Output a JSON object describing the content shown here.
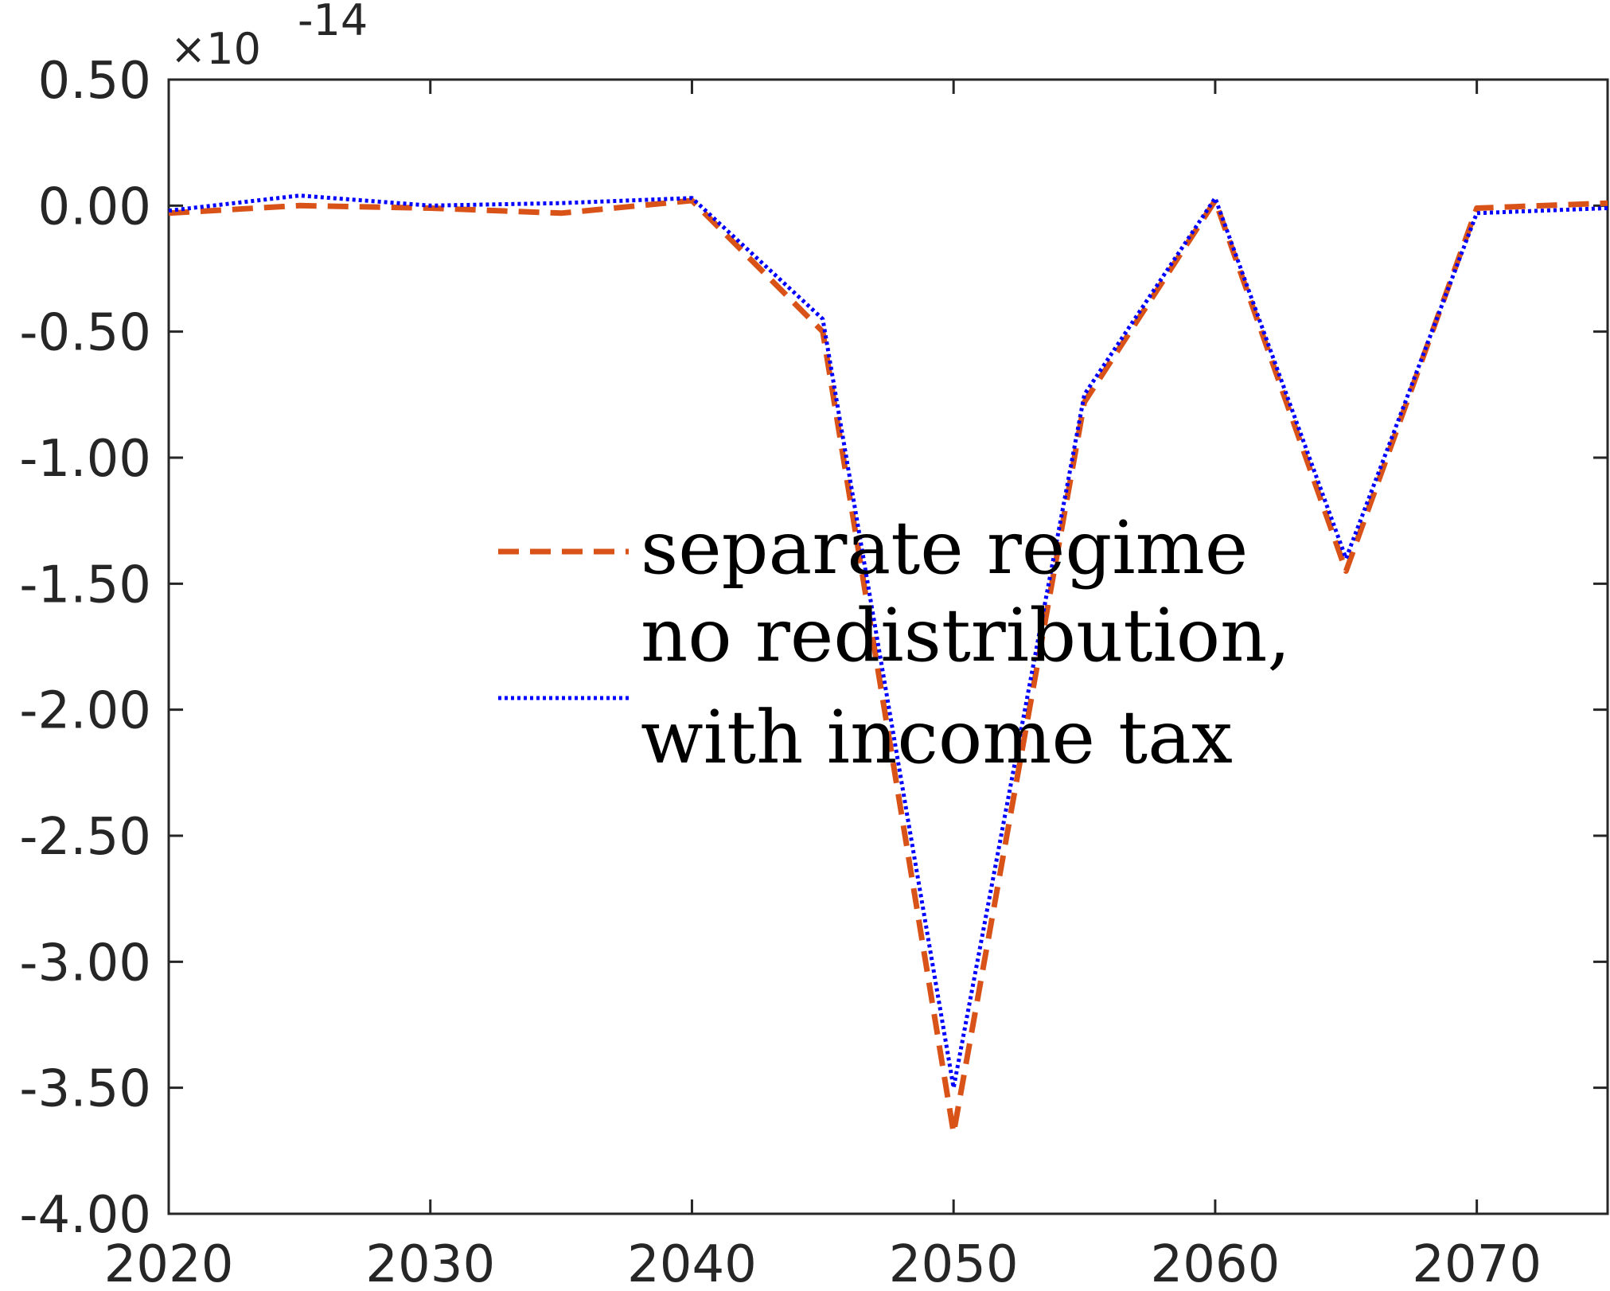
{
  "chart_data": {
    "type": "line",
    "x": [
      2020,
      2025,
      2030,
      2035,
      2040,
      2045,
      2050,
      2055,
      2060,
      2065,
      2070,
      2075
    ],
    "series": [
      {
        "name": "separate regime",
        "style": "dashed",
        "color": "#D95319",
        "values": [
          -0.03,
          0.0,
          -0.01,
          -0.03,
          0.02,
          -0.5,
          -3.68,
          -0.78,
          0.02,
          -1.45,
          -0.01,
          0.01
        ]
      },
      {
        "name": "no redistribution, with income tax",
        "style": "dotted",
        "color": "#0000FF",
        "values": [
          -0.02,
          0.04,
          0.0,
          0.01,
          0.03,
          -0.45,
          -3.5,
          -0.75,
          0.03,
          -1.4,
          -0.03,
          -0.01
        ]
      }
    ],
    "xlim": [
      2020,
      2075
    ],
    "ylim": [
      -4.0,
      0.5
    ],
    "xticks": [
      2020,
      2030,
      2040,
      2050,
      2060,
      2070
    ],
    "yticks": [
      0.5,
      0.0,
      -0.5,
      -1.0,
      -1.5,
      -2.0,
      -2.5,
      -3.0,
      -3.5,
      -4.0
    ],
    "ytick_labels": [
      "0.50",
      "0.00",
      "-0.50",
      "-1.00",
      "-1.50",
      "-2.00",
      "-2.50",
      "-3.00",
      "-3.50",
      "-4.00"
    ],
    "y_multiplier": {
      "base": "×10",
      "exponent": "-14"
    },
    "legend": {
      "placement": "center",
      "boxed": false,
      "entries": [
        {
          "lines": [
            "separate regime"
          ]
        },
        {
          "lines": [
            "no redistribution,",
            "with income tax"
          ]
        }
      ]
    },
    "title": "",
    "xlabel": "",
    "ylabel": "",
    "grid": false
  }
}
